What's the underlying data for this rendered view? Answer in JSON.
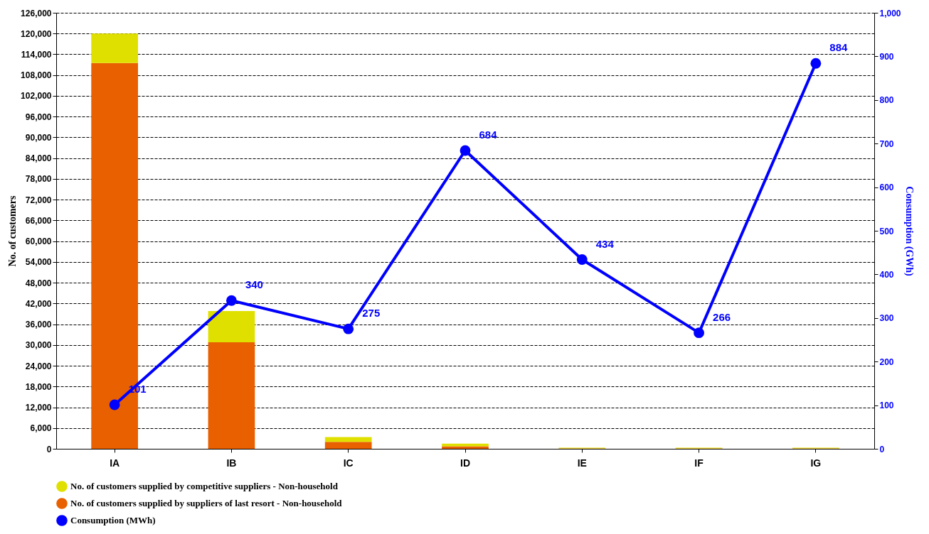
{
  "chart_data": {
    "type": "bar",
    "stacked": true,
    "categories": [
      "IA",
      "IB",
      "IC",
      "ID",
      "IE",
      "IF",
      "IG"
    ],
    "series": [
      {
        "name": "No. of customers supplied by suppliers of last resort - Non-household",
        "color": "#e86000",
        "values": [
          111500,
          30800,
          2000,
          700,
          100,
          100,
          100
        ]
      },
      {
        "name": "No. of customers supplied by competitive suppliers - Non-household",
        "color": "#e0e000",
        "values": [
          8500,
          9000,
          1400,
          800,
          200,
          200,
          200
        ]
      },
      {
        "name": "Consumption (MWh)",
        "type": "line",
        "axis": "y2",
        "color": "#0000ff",
        "marker": "circle",
        "values": [
          101,
          340,
          275,
          684,
          434,
          266,
          884
        ],
        "data_labels": true
      }
    ],
    "ylabel": "No. of customers",
    "y2label": "Consumption  (GWh)",
    "ylim": [
      0,
      126000
    ],
    "yticks": [
      0,
      {
        "value": 6000,
        "label": "6,000"
      },
      {
        "value": 12000,
        "label": "12,000"
      },
      {
        "value": 18000,
        "label": "18,000"
      },
      {
        "value": 24000,
        "label": "24,000"
      },
      {
        "value": 30000,
        "label": "30,000"
      },
      {
        "value": 36000,
        "label": "36,000"
      },
      {
        "value": 42000,
        "label": "42,000"
      },
      {
        "value": 48000,
        "label": "48,000"
      },
      {
        "value": 54000,
        "label": "54,000"
      },
      {
        "value": 60000,
        "label": "60,000"
      },
      {
        "value": 66000,
        "label": "66,000"
      },
      {
        "value": 72000,
        "label": "72,000"
      },
      {
        "value": 78000,
        "label": "78,000"
      },
      {
        "value": 84000,
        "label": "84,000"
      },
      {
        "value": 90000,
        "label": "90,000"
      },
      {
        "value": 96000,
        "label": "96,000"
      },
      {
        "value": 102000,
        "label": "102,000"
      },
      {
        "value": 108000,
        "label": "108,000"
      },
      {
        "value": 114000,
        "label": "114,000"
      },
      {
        "value": 120000,
        "label": "120,000"
      },
      {
        "value": 126000,
        "label": "126,000"
      }
    ],
    "y2lim": [
      0,
      1000
    ],
    "y2ticks": [
      0,
      100,
      200,
      300,
      400,
      500,
      600,
      700,
      800,
      900,
      {
        "value": 1000,
        "label": "1,000"
      }
    ],
    "grid": "y",
    "legend": "bottom"
  }
}
